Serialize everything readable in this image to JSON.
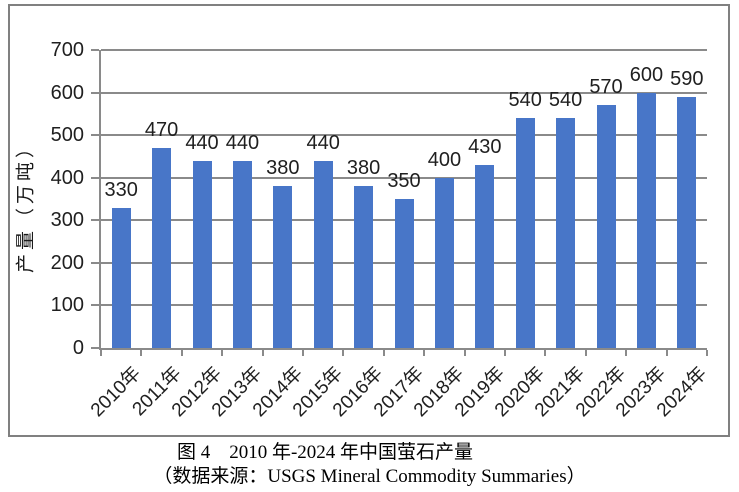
{
  "chart_data": {
    "type": "bar",
    "title": "图 4　2010 年-2024 年中国萤石产量",
    "source_note": "（数据来源：USGS Mineral Commodity Summaries）",
    "xlabel": "",
    "ylabel": "产量（万吨）",
    "categories": [
      "2010年",
      "2011年",
      "2012年",
      "2013年",
      "2014年",
      "2015年",
      "2016年",
      "2017年",
      "2018年",
      "2019年",
      "2020年",
      "2021年",
      "2022年",
      "2023年",
      "2024年"
    ],
    "values": [
      330,
      470,
      440,
      440,
      380,
      440,
      380,
      350,
      400,
      430,
      540,
      540,
      570,
      600,
      590
    ],
    "ylim": [
      0,
      700
    ],
    "yticks": [
      0,
      100,
      200,
      300,
      400,
      500,
      600,
      700
    ],
    "grid": true,
    "legend": false,
    "bar_color": "#4876C8",
    "grid_color": "#8A8A8A",
    "axis_color": "#8A8A8A",
    "frame_color": "#808080",
    "text_color": "#1F1F1F"
  }
}
